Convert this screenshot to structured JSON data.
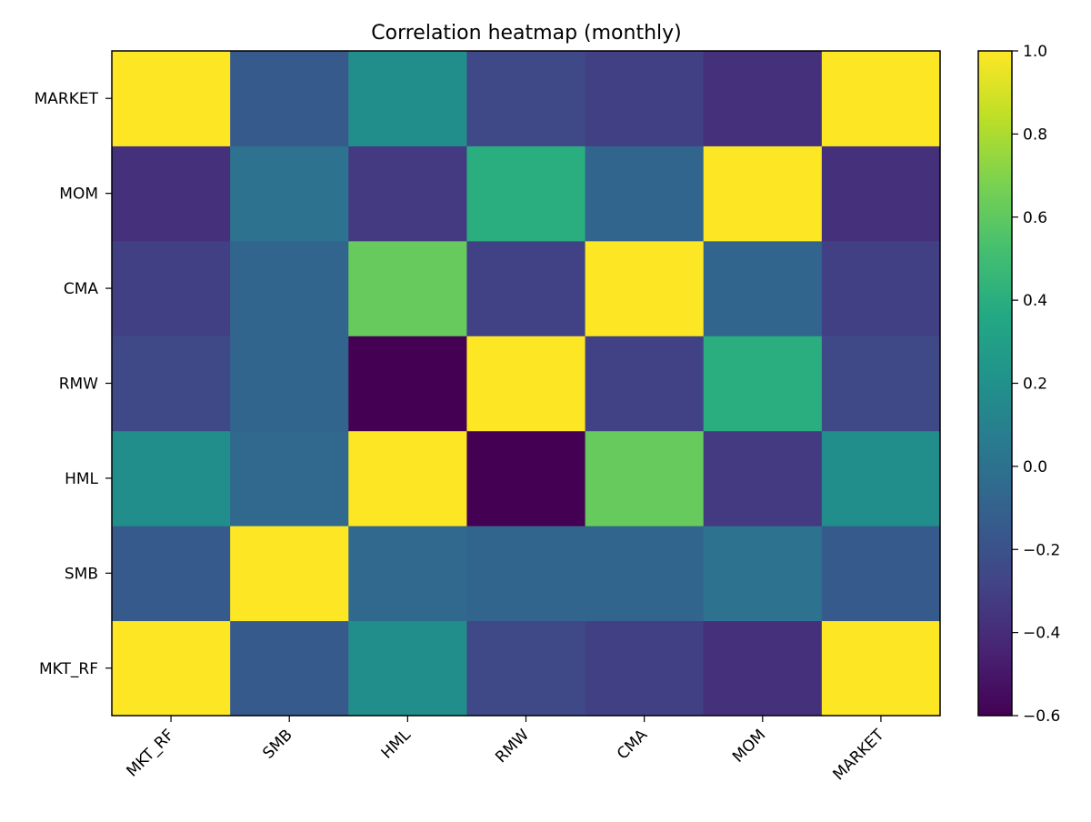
{
  "chart_data": {
    "type": "heatmap",
    "title": "Correlation heatmap (monthly)",
    "xlabel": "",
    "ylabel": "",
    "x_categories": [
      "MKT_RF",
      "SMB",
      "HML",
      "RMW",
      "CMA",
      "MOM",
      "MARKET"
    ],
    "y_categories": [
      "MKT_RF",
      "SMB",
      "HML",
      "RMW",
      "CMA",
      "MOM",
      "MARKET"
    ],
    "y_order": "bottom-to-top",
    "values": [
      [
        1.0,
        -0.15,
        0.18,
        -0.25,
        -0.3,
        -0.38,
        1.0
      ],
      [
        -0.15,
        1.0,
        -0.06,
        -0.08,
        -0.08,
        0.0,
        -0.15
      ],
      [
        0.18,
        -0.06,
        1.0,
        -0.6,
        0.62,
        -0.33,
        0.18
      ],
      [
        -0.25,
        -0.08,
        -0.6,
        1.0,
        -0.29,
        0.4,
        -0.25
      ],
      [
        -0.3,
        -0.08,
        0.62,
        -0.29,
        1.0,
        -0.08,
        -0.3
      ],
      [
        -0.38,
        0.0,
        -0.33,
        0.4,
        -0.08,
        1.0,
        -0.38
      ],
      [
        1.0,
        -0.15,
        0.18,
        -0.25,
        -0.3,
        -0.38,
        1.0
      ]
    ],
    "colorbar": {
      "range": [
        -0.6,
        1.0
      ],
      "ticks": [
        1.0,
        0.8,
        0.6,
        0.4,
        0.2,
        0.0,
        -0.2,
        -0.4,
        -0.6
      ],
      "tick_labels": [
        "1.0",
        "0.8",
        "0.6",
        "0.4",
        "0.2",
        "0.0",
        "−0.2",
        "−0.4",
        "−0.6"
      ],
      "colormap": "viridis"
    },
    "grid": false
  }
}
